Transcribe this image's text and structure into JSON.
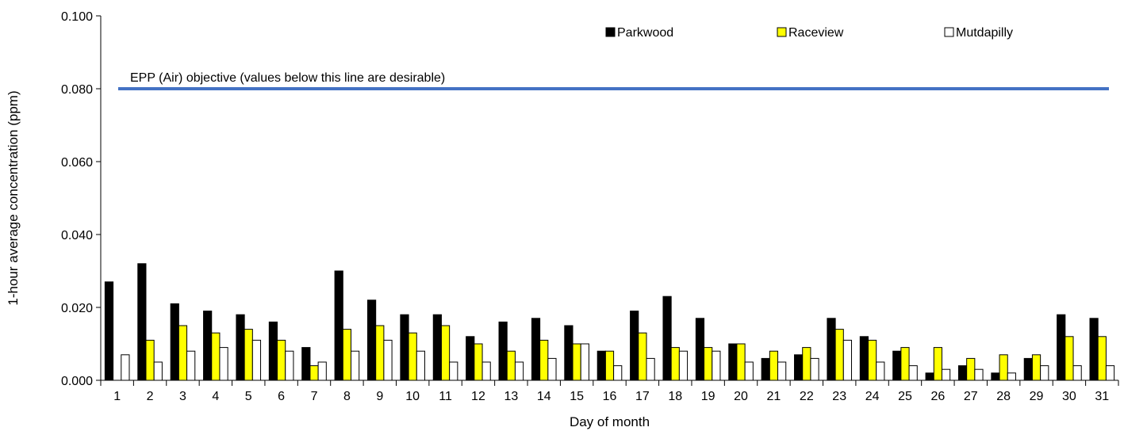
{
  "chart_data": {
    "type": "bar",
    "xlabel": "Day of month",
    "ylabel": "1-hour average concentration (ppm)",
    "ylim": [
      0,
      0.1
    ],
    "yticks": [
      "0.000",
      "0.020",
      "0.040",
      "0.060",
      "0.080",
      "0.100"
    ],
    "categories": [
      "1",
      "2",
      "3",
      "4",
      "5",
      "6",
      "7",
      "8",
      "9",
      "10",
      "11",
      "12",
      "13",
      "14",
      "15",
      "16",
      "17",
      "18",
      "19",
      "20",
      "21",
      "22",
      "23",
      "24",
      "25",
      "26",
      "27",
      "28",
      "29",
      "30",
      "31"
    ],
    "series": [
      {
        "name": "Parkwood",
        "color": "#000000",
        "values": [
          0.027,
          0.032,
          0.021,
          0.019,
          0.018,
          0.016,
          0.009,
          0.03,
          0.022,
          0.018,
          0.018,
          0.012,
          0.016,
          0.017,
          0.015,
          0.008,
          0.019,
          0.023,
          0.017,
          0.01,
          0.006,
          0.007,
          0.017,
          0.012,
          0.008,
          0.002,
          0.004,
          0.002,
          0.006,
          0.018,
          0.017
        ]
      },
      {
        "name": "Raceview",
        "color": "#ffff00",
        "values": [
          null,
          0.011,
          0.015,
          0.013,
          0.014,
          0.011,
          0.004,
          0.014,
          0.015,
          0.013,
          0.015,
          0.01,
          0.008,
          0.011,
          0.01,
          0.008,
          0.013,
          0.009,
          0.009,
          0.01,
          0.008,
          0.009,
          0.014,
          0.011,
          0.009,
          0.009,
          0.006,
          0.007,
          0.007,
          0.012,
          0.012
        ]
      },
      {
        "name": "Mutdapilly",
        "color": "#ffffff",
        "values": [
          0.007,
          0.005,
          0.008,
          0.009,
          0.011,
          0.008,
          0.005,
          0.008,
          0.011,
          0.008,
          0.005,
          0.005,
          0.005,
          0.006,
          0.01,
          0.004,
          0.006,
          0.008,
          0.008,
          0.005,
          0.005,
          0.006,
          0.011,
          0.005,
          0.004,
          0.003,
          0.003,
          0.002,
          0.004,
          0.004,
          0.004
        ]
      }
    ],
    "reference_line": {
      "value": 0.08,
      "color": "#4472c4",
      "label": "EPP (Air) objective (values below this line are desirable)"
    },
    "legend": {
      "placement": "top-right"
    },
    "grid": false
  }
}
